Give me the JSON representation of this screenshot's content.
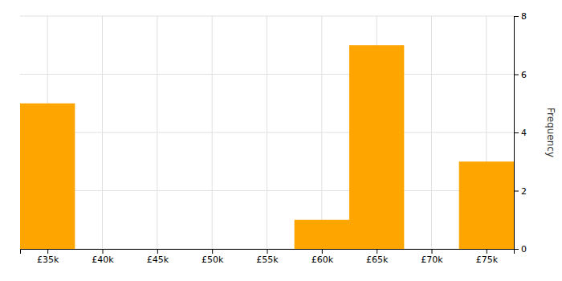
{
  "chart_data": {
    "type": "histogram",
    "bins": [
      32500,
      37500,
      42500,
      47500,
      52500,
      57500,
      62500,
      67500,
      72500,
      77500
    ],
    "values": [
      5,
      0,
      0,
      0,
      0,
      1,
      7,
      0,
      3
    ],
    "color": "#FFA500",
    "ylabel": "Frequency",
    "xlim": [
      32500,
      77500
    ],
    "ylim": [
      0,
      8
    ],
    "yticks": [
      0,
      2,
      4,
      6,
      8
    ],
    "xticks": [
      {
        "value": 35000,
        "label": "£35k"
      },
      {
        "value": 40000,
        "label": "£40k"
      },
      {
        "value": 45000,
        "label": "£45k"
      },
      {
        "value": 50000,
        "label": "£50k"
      },
      {
        "value": 55000,
        "label": "£55k"
      },
      {
        "value": 60000,
        "label": "£60k"
      },
      {
        "value": 65000,
        "label": "£65k"
      },
      {
        "value": 70000,
        "label": "£70k"
      },
      {
        "value": 75000,
        "label": "£75k"
      }
    ],
    "grid": true
  }
}
